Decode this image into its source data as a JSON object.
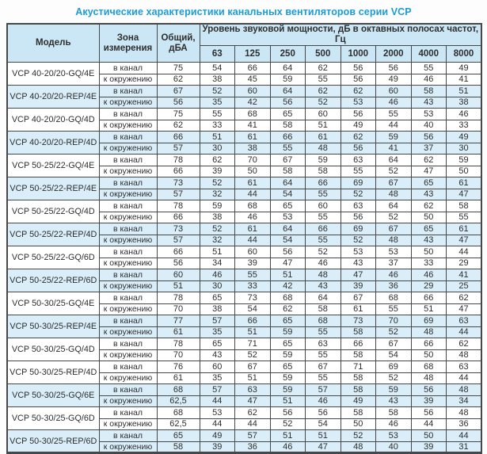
{
  "page": {
    "title": "Акустические характеристики канальных вентиляторов  серии VCP"
  },
  "colors": {
    "title_text": "#1a9cd8",
    "header_bg": "#cbe7f5",
    "row_shaded_bg": "#d9eef9",
    "row_plain_bg": "#ffffff",
    "border": "#474747",
    "text": "#2e2e2e"
  },
  "table": {
    "headers": {
      "model": "Модель",
      "zone": "Зона измерения",
      "total": "Общий, дБА",
      "group": "Уровень звуковой мощности, дБ в октавных полосах частот, Гц",
      "frequencies": [
        "63",
        "125",
        "250",
        "500",
        "1000",
        "2000",
        "4000",
        "8000"
      ]
    },
    "zone_labels": [
      "в канал",
      "к окружению"
    ],
    "models": [
      {
        "name": "VCP 40-20/20-GQ/4E",
        "shaded": false,
        "rows": [
          {
            "zone": "в канал",
            "total": "75",
            "levels": [
              54,
              66,
              64,
              62,
              56,
              56,
              55,
              49
            ]
          },
          {
            "zone": "к окружению",
            "total": "62",
            "levels": [
              38,
              45,
              59,
              55,
              56,
              49,
              46,
              41
            ]
          }
        ]
      },
      {
        "name": "VCP 40-20/20-REP/4E",
        "shaded": true,
        "rows": [
          {
            "zone": "в канал",
            "total": "67",
            "levels": [
              52,
              60,
              64,
              62,
              62,
              60,
              58,
              51
            ]
          },
          {
            "zone": "к окружению",
            "total": "56",
            "levels": [
              35,
              42,
              56,
              52,
              53,
              46,
              43,
              38
            ]
          }
        ]
      },
      {
        "name": "VCP 40-20/20-GQ/4D",
        "shaded": false,
        "rows": [
          {
            "zone": "в канал",
            "total": "75",
            "levels": [
              55,
              68,
              65,
              60,
              56,
              55,
              53,
              46
            ]
          },
          {
            "zone": "к окружению",
            "total": "62",
            "levels": [
              33,
              41,
              58,
              51,
              49,
              44,
              40,
              33
            ]
          }
        ]
      },
      {
        "name": "VCP 40-20/20-REP/4D",
        "shaded": true,
        "rows": [
          {
            "zone": "в канал",
            "total": "66",
            "levels": [
              51,
              61,
              66,
              61,
              62,
              59,
              56,
              49
            ]
          },
          {
            "zone": "к окружению",
            "total": "57",
            "levels": [
              30,
              38,
              55,
              48,
              56,
              41,
              37,
              30
            ]
          }
        ]
      },
      {
        "name": "VCP 50-25/22-GQ/4E",
        "shaded": false,
        "rows": [
          {
            "zone": "в канал",
            "total": "78",
            "levels": [
              62,
              70,
              67,
              59,
              63,
              64,
              62,
              59
            ]
          },
          {
            "zone": "к окружению",
            "total": "66",
            "levels": [
              39,
              50,
              58,
              58,
              55,
              52,
              47,
              50
            ]
          }
        ]
      },
      {
        "name": "VCP 50-25/22-REP/4E",
        "shaded": true,
        "rows": [
          {
            "zone": "в канал",
            "total": "73",
            "levels": [
              52,
              61,
              64,
              66,
              69,
              67,
              65,
              61
            ]
          },
          {
            "zone": "к окружению",
            "total": "57",
            "levels": [
              32,
              44,
              54,
              55,
              52,
              48,
              43,
              47
            ]
          }
        ]
      },
      {
        "name": "VCP 50-25/22-GQ/4D",
        "shaded": false,
        "rows": [
          {
            "zone": "в канал",
            "total": "78",
            "levels": [
              59,
              68,
              65,
              60,
              63,
              64,
              62,
              58
            ]
          },
          {
            "zone": "к окружению",
            "total": "66",
            "levels": [
              38,
              46,
              53,
              55,
              56,
              52,
              50,
              55
            ]
          }
        ]
      },
      {
        "name": "VCP 50-25/22-REP/4D",
        "shaded": true,
        "rows": [
          {
            "zone": "в канал",
            "total": "73",
            "levels": [
              52,
              61,
              64,
              66,
              69,
              67,
              65,
              61
            ]
          },
          {
            "zone": "к окружению",
            "total": "57",
            "levels": [
              32,
              44,
              54,
              55,
              52,
              48,
              43,
              47
            ]
          }
        ]
      },
      {
        "name": "VCP 50-25/22-GQ/6D",
        "shaded": false,
        "rows": [
          {
            "zone": "в канал",
            "total": "66",
            "levels": [
              51,
              60,
              56,
              52,
              53,
              53,
              50,
              44
            ]
          },
          {
            "zone": "к окружению",
            "total": "56",
            "levels": [
              34,
              39,
              47,
              46,
              43,
              37,
              33,
              29
            ]
          }
        ]
      },
      {
        "name": "VCP 50-25/22-REP/6D",
        "shaded": true,
        "rows": [
          {
            "zone": "в канал",
            "total": "60",
            "levels": [
              46,
              55,
              51,
              48,
              47,
              46,
              46,
              41
            ]
          },
          {
            "zone": "к окружению",
            "total": "51",
            "levels": [
              30,
              33,
              42,
              43,
              39,
              36,
              29,
              25
            ]
          }
        ]
      },
      {
        "name": "VCP 50-30/25-GQ/4E",
        "shaded": false,
        "rows": [
          {
            "zone": "в канал",
            "total": "78",
            "levels": [
              65,
              73,
              68,
              64,
              67,
              68,
              66,
              62
            ]
          },
          {
            "zone": "к окружению",
            "total": "70",
            "levels": [
              38,
              54,
              62,
              58,
              61,
              55,
              51,
              47
            ]
          }
        ]
      },
      {
        "name": "VCP 50-30/25-REP/4E",
        "shaded": true,
        "rows": [
          {
            "zone": "в канал",
            "total": "77",
            "levels": [
              57,
              66,
              65,
              68,
              73,
              70,
              69,
              63
            ]
          },
          {
            "zone": "к окружению",
            "total": "61",
            "levels": [
              35,
              51,
              59,
              55,
              58,
              52,
              48,
              44
            ]
          }
        ]
      },
      {
        "name": "VCP 50-30/25-GQ/4D",
        "shaded": false,
        "rows": [
          {
            "zone": "в канал",
            "total": "78",
            "levels": [
              65,
              71,
              65,
              63,
              66,
              67,
              66,
              62
            ]
          },
          {
            "zone": "к окружению",
            "total": "70",
            "levels": [
              43,
              52,
              59,
              55,
              58,
              54,
              50,
              48
            ]
          }
        ]
      },
      {
        "name": "VCP 50-30/25-REP/4D",
        "shaded": false,
        "rows": [
          {
            "zone": "в канал",
            "total": "76",
            "levels": [
              60,
              67,
              65,
              67,
              71,
              69,
              68,
              63
            ]
          },
          {
            "zone": "к окружению",
            "total": "61",
            "levels": [
              35,
              51,
              59,
              55,
              58,
              52,
              48,
              44
            ]
          }
        ]
      },
      {
        "name": "VCP 50-30/25-GQ/6E",
        "shaded": true,
        "rows": [
          {
            "zone": "в канал",
            "total": "68",
            "levels": [
              57,
              63,
              59,
              57,
              58,
              59,
              56,
              48
            ]
          },
          {
            "zone": "к окружению",
            "total": "62,5",
            "levels": [
              44,
              47,
              51,
              46,
              49,
              43,
              39,
              34
            ]
          }
        ]
      },
      {
        "name": "VCP 50-30/25-GQ/6D",
        "shaded": false,
        "rows": [
          {
            "zone": "в канал",
            "total": "68",
            "levels": [
              53,
              62,
              56,
              56,
              58,
              58,
              56,
              48
            ]
          },
          {
            "zone": "к окружению",
            "total": "62,5",
            "levels": [
              44,
              44,
              52,
              54,
              50,
              46,
              44,
              36
            ]
          }
        ]
      },
      {
        "name": "VCP 50-30/25-REP/6D",
        "shaded": true,
        "rows": [
          {
            "zone": "в канал",
            "total": "65",
            "levels": [
              49,
              57,
              51,
              51,
              52,
              53,
              50,
              44
            ]
          },
          {
            "zone": "к окружению",
            "total": "58",
            "levels": [
              39,
              36,
              46,
              47,
              48,
              40,
              39,
              31
            ]
          }
        ]
      }
    ]
  }
}
